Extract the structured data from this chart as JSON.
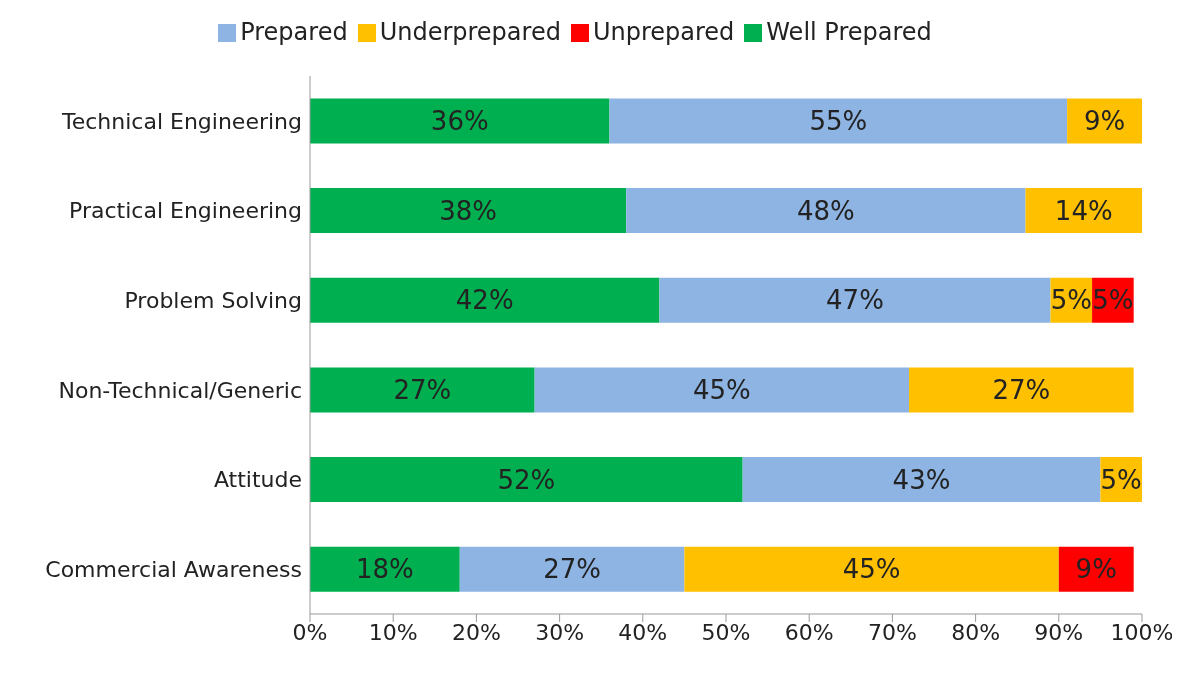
{
  "chart_data": {
    "type": "bar",
    "orientation": "horizontal",
    "stacked": true,
    "categories": [
      "Technical Engineering",
      "Practical Engineering",
      "Problem Solving",
      "Non-Technical/Generic",
      "Attitude",
      "Commercial Awareness"
    ],
    "series": [
      {
        "name": "Well Prepared",
        "color": "#00b050",
        "values": [
          36,
          38,
          42,
          27,
          52,
          18
        ],
        "value_labels": [
          "36%",
          "38%",
          "42%",
          "27%",
          "52%",
          "18%"
        ]
      },
      {
        "name": "Prepared",
        "color": "#8eb4e3",
        "values": [
          55,
          48,
          47,
          45,
          43,
          27
        ],
        "value_labels": [
          "55%",
          "48%",
          "47%",
          "45%",
          "43%",
          "27%"
        ]
      },
      {
        "name": "Underprepared",
        "color": "#ffc000",
        "values": [
          9,
          14,
          5,
          27,
          5,
          45
        ],
        "value_labels": [
          "9%",
          "14%",
          "5%",
          "27%",
          "5%",
          "45%"
        ]
      },
      {
        "name": "Unprepared",
        "color": "#ff0000",
        "values": [
          null,
          null,
          5,
          null,
          null,
          9
        ],
        "value_labels": [
          null,
          null,
          "5%",
          null,
          null,
          "9%"
        ]
      }
    ],
    "xlim": [
      0,
      100
    ],
    "xticks": [
      {
        "value": 0,
        "label": "0%"
      },
      {
        "value": 10,
        "label": "10%"
      },
      {
        "value": 20,
        "label": "20%"
      },
      {
        "value": 30,
        "label": "30%"
      },
      {
        "value": 40,
        "label": "40%"
      },
      {
        "value": 50,
        "label": "50%"
      },
      {
        "value": 60,
        "label": "60%"
      },
      {
        "value": 70,
        "label": "70%"
      },
      {
        "value": 80,
        "label": "80%"
      },
      {
        "value": 90,
        "label": "90%"
      },
      {
        "value": 100,
        "label": "100%"
      }
    ],
    "grid": false,
    "legend": "top"
  }
}
